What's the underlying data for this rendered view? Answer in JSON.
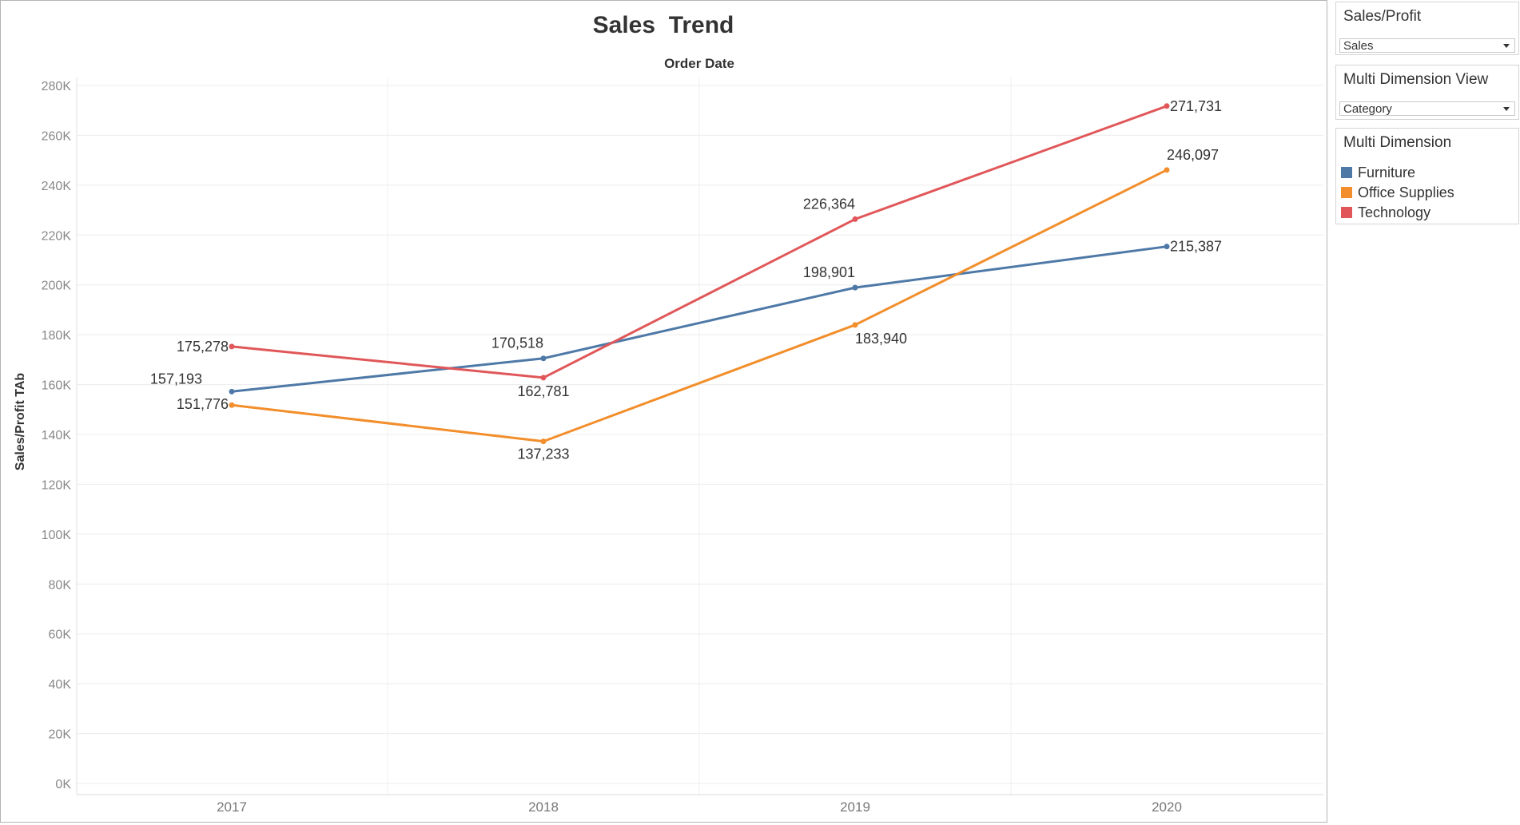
{
  "chart_data": {
    "type": "line",
    "title": "Sales  Trend",
    "subtitle": "Order Date",
    "ylabel": "Sales/Profit TAb",
    "xlabel": "",
    "categories": [
      "2017",
      "2018",
      "2019",
      "2020"
    ],
    "ylim": [
      0,
      280000
    ],
    "yticks": [
      0,
      20000,
      40000,
      60000,
      80000,
      100000,
      120000,
      140000,
      160000,
      180000,
      200000,
      220000,
      240000,
      260000,
      280000
    ],
    "ytick_labels": [
      "0K",
      "20K",
      "40K",
      "60K",
      "80K",
      "100K",
      "120K",
      "140K",
      "160K",
      "180K",
      "200K",
      "220K",
      "240K",
      "260K",
      "280K"
    ],
    "grid": true,
    "legend": "right",
    "series": [
      {
        "name": "Furniture",
        "color": "#4e79a7",
        "values": [
          157193,
          170518,
          198901,
          215387
        ],
        "labels": [
          "157,193",
          "170,518",
          "198,901",
          "215,387"
        ]
      },
      {
        "name": "Office Supplies",
        "color": "#f28e2b",
        "values": [
          151776,
          137233,
          183940,
          246097
        ],
        "labels": [
          "151,776",
          "137,233",
          "183,940",
          "246,097"
        ]
      },
      {
        "name": "Technology",
        "color": "#e15759",
        "values": [
          175278,
          162781,
          226364,
          271731
        ],
        "labels": [
          "175,278",
          "162,781",
          "226,364",
          "271,731"
        ]
      }
    ]
  },
  "controls": {
    "sales_profit": {
      "title": "Sales/Profit",
      "value": "Sales"
    },
    "multi_dimension_view": {
      "title": "Multi Dimension View",
      "value": "Category"
    }
  },
  "legend": {
    "title": "Multi Dimension",
    "items": [
      {
        "label": "Furniture",
        "color": "#4e79a7"
      },
      {
        "label": "Office Supplies",
        "color": "#f28e2b"
      },
      {
        "label": "Technology",
        "color": "#e15759"
      }
    ]
  }
}
